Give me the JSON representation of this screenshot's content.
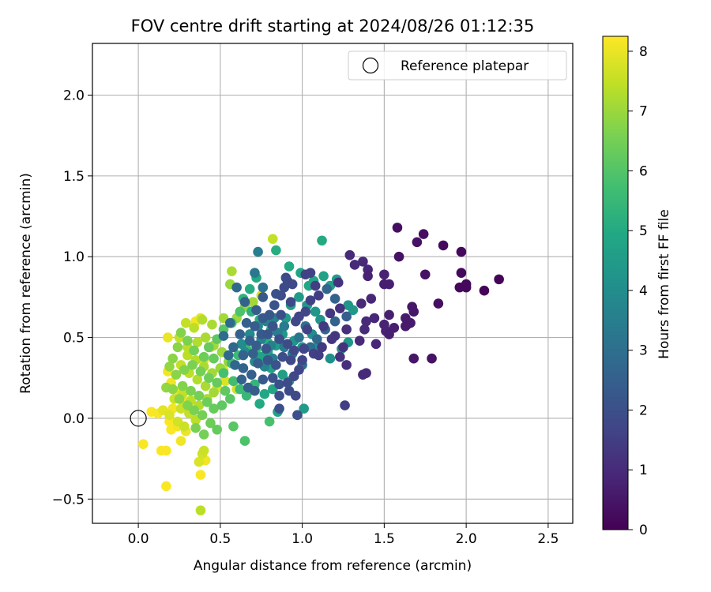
{
  "chart_data": {
    "type": "scatter",
    "title": "FOV centre drift starting at 2024/08/26 01:12:35",
    "xlabel": "Angular distance from reference (arcmin)",
    "ylabel": "Rotation from reference (arcmin)",
    "xlim": [
      -0.28,
      2.65
    ],
    "ylim": [
      -0.65,
      2.32
    ],
    "xticks": [
      "0.0",
      "0.5",
      "1.0",
      "1.5",
      "2.0",
      "2.5"
    ],
    "yticks": [
      "−0.5",
      "0.0",
      "0.5",
      "1.0",
      "1.5",
      "2.0"
    ],
    "grid": true,
    "legend": {
      "placement": "top-right",
      "entries": [
        "Reference platepar"
      ]
    },
    "reference_point": {
      "x": 0.0,
      "y": 0.0
    },
    "colorbar": {
      "label": "Hours from first FF file",
      "colormap": "viridis",
      "range": [
        0,
        8.25
      ],
      "ticks": [
        "0",
        "1",
        "2",
        "3",
        "4",
        "5",
        "6",
        "7",
        "8"
      ]
    },
    "points_x_y_hours": [
      [
        1.58,
        1.18,
        0.3
      ],
      [
        1.74,
        1.14,
        0.3
      ],
      [
        1.7,
        1.09,
        0.4
      ],
      [
        1.86,
        1.07,
        0.2
      ],
      [
        1.97,
        1.03,
        0.2
      ],
      [
        1.59,
        1.0,
        0.4
      ],
      [
        1.29,
        1.01,
        1.0
      ],
      [
        1.37,
        0.97,
        1.0
      ],
      [
        1.4,
        0.92,
        0.9
      ],
      [
        1.32,
        0.95,
        1.0
      ],
      [
        1.4,
        0.88,
        0.8
      ],
      [
        1.5,
        0.89,
        0.8
      ],
      [
        1.5,
        0.83,
        0.7
      ],
      [
        1.53,
        0.83,
        0.7
      ],
      [
        1.75,
        0.89,
        0.4
      ],
      [
        1.97,
        0.9,
        0.2
      ],
      [
        2.0,
        0.83,
        0.2
      ],
      [
        2.2,
        0.86,
        0.1
      ],
      [
        2.11,
        0.79,
        0.1
      ],
      [
        1.96,
        0.81,
        0.2
      ],
      [
        2.0,
        0.81,
        0.2
      ],
      [
        1.67,
        0.69,
        0.5
      ],
      [
        1.68,
        0.66,
        0.5
      ],
      [
        1.83,
        0.71,
        0.3
      ],
      [
        1.63,
        0.62,
        0.6
      ],
      [
        1.66,
        0.59,
        0.6
      ],
      [
        1.53,
        0.64,
        0.7
      ],
      [
        1.5,
        0.58,
        0.8
      ],
      [
        1.64,
        0.58,
        0.6
      ],
      [
        1.56,
        0.56,
        0.7
      ],
      [
        1.63,
        0.57,
        0.6
      ],
      [
        1.53,
        0.52,
        0.7
      ],
      [
        1.51,
        0.54,
        0.8
      ],
      [
        1.39,
        0.6,
        1.0
      ],
      [
        1.38,
        0.55,
        1.0
      ],
      [
        1.45,
        0.46,
        0.9
      ],
      [
        1.35,
        0.48,
        1.0
      ],
      [
        1.37,
        0.27,
        1.0
      ],
      [
        1.39,
        0.28,
        1.0
      ],
      [
        1.68,
        0.37,
        0.5
      ],
      [
        1.79,
        0.37,
        0.4
      ],
      [
        1.26,
        0.08,
        1.5
      ],
      [
        0.97,
        0.02,
        2.0
      ],
      [
        1.44,
        0.62,
        0.9
      ],
      [
        1.42,
        0.74,
        0.9
      ],
      [
        1.36,
        0.71,
        1.0
      ],
      [
        1.22,
        0.84,
        1.2
      ],
      [
        1.1,
        0.76,
        1.5
      ],
      [
        1.23,
        0.68,
        1.2
      ],
      [
        1.17,
        0.65,
        1.3
      ],
      [
        1.13,
        0.57,
        1.4
      ],
      [
        1.27,
        0.55,
        1.1
      ],
      [
        1.2,
        0.51,
        1.3
      ],
      [
        1.25,
        0.44,
        1.2
      ],
      [
        1.27,
        0.33,
        1.1
      ],
      [
        1.23,
        0.38,
        1.2
      ],
      [
        1.18,
        0.49,
        1.3
      ],
      [
        1.12,
        0.44,
        1.4
      ],
      [
        1.03,
        0.55,
        1.6
      ],
      [
        0.98,
        0.63,
        1.7
      ],
      [
        0.93,
        0.72,
        1.8
      ],
      [
        0.9,
        0.87,
        1.9
      ],
      [
        0.94,
        0.83,
        1.8
      ],
      [
        1.05,
        0.9,
        1.6
      ],
      [
        1.02,
        0.89,
        1.6
      ],
      [
        1.08,
        0.82,
        1.5
      ],
      [
        1.05,
        0.73,
        1.6
      ],
      [
        1.02,
        0.66,
        1.7
      ],
      [
        0.96,
        0.6,
        1.8
      ],
      [
        0.87,
        0.64,
        2.0
      ],
      [
        0.82,
        0.57,
        2.1
      ],
      [
        0.79,
        0.52,
        2.2
      ],
      [
        0.86,
        0.49,
        2.0
      ],
      [
        0.91,
        0.46,
        1.9
      ],
      [
        0.95,
        0.42,
        1.8
      ],
      [
        1.01,
        0.43,
        1.7
      ],
      [
        1.07,
        0.4,
        1.6
      ],
      [
        1.1,
        0.39,
        1.5
      ],
      [
        1.0,
        0.36,
        1.7
      ],
      [
        0.93,
        0.36,
        1.8
      ],
      [
        0.88,
        0.38,
        2.0
      ],
      [
        0.84,
        0.33,
        2.1
      ],
      [
        0.79,
        0.36,
        2.2
      ],
      [
        0.73,
        0.34,
        2.4
      ],
      [
        0.7,
        0.4,
        2.5
      ],
      [
        0.64,
        0.39,
        2.6
      ],
      [
        0.58,
        0.44,
        2.7
      ],
      [
        0.62,
        0.52,
        2.6
      ],
      [
        0.66,
        0.59,
        2.5
      ],
      [
        0.71,
        0.57,
        2.4
      ],
      [
        0.75,
        0.52,
        2.3
      ],
      [
        0.68,
        0.48,
        2.5
      ],
      [
        0.56,
        0.59,
        2.8
      ],
      [
        0.52,
        0.51,
        2.9
      ],
      [
        0.55,
        0.39,
        2.8
      ],
      [
        0.59,
        0.33,
        2.7
      ],
      [
        0.64,
        0.31,
        2.6
      ],
      [
        0.69,
        0.27,
        2.5
      ],
      [
        0.76,
        0.24,
        2.3
      ],
      [
        0.82,
        0.25,
        2.1
      ],
      [
        0.86,
        0.21,
        2.0
      ],
      [
        0.91,
        0.22,
        1.9
      ],
      [
        0.95,
        0.26,
        1.8
      ],
      [
        0.98,
        0.3,
        1.7
      ],
      [
        0.6,
        0.81,
        2.8
      ],
      [
        0.65,
        0.72,
        2.6
      ],
      [
        0.72,
        0.67,
        2.4
      ],
      [
        0.76,
        0.75,
        2.3
      ],
      [
        0.83,
        0.7,
        2.1
      ],
      [
        0.87,
        0.76,
        2.0
      ],
      [
        0.89,
        0.81,
        1.9
      ],
      [
        0.91,
        0.85,
        1.9
      ],
      [
        0.84,
        0.77,
        2.1
      ],
      [
        0.8,
        0.64,
        2.2
      ],
      [
        0.76,
        0.62,
        2.3
      ],
      [
        0.72,
        0.45,
        2.4
      ],
      [
        0.78,
        0.43,
        2.2
      ],
      [
        0.63,
        0.24,
        2.6
      ],
      [
        0.67,
        0.19,
        2.5
      ],
      [
        0.71,
        0.17,
        2.4
      ],
      [
        0.86,
        0.14,
        2.0
      ],
      [
        0.92,
        0.17,
        1.9
      ],
      [
        0.96,
        0.14,
        1.8
      ],
      [
        0.86,
        0.06,
        2.0
      ],
      [
        0.76,
        0.81,
        3.1
      ],
      [
        0.71,
        0.9,
        3.3
      ],
      [
        0.73,
        1.03,
        3.5
      ],
      [
        0.98,
        0.5,
        3.2
      ],
      [
        1.02,
        0.57,
        3.0
      ],
      [
        0.89,
        0.57,
        3.4
      ],
      [
        0.85,
        0.53,
        3.5
      ],
      [
        0.89,
        0.44,
        3.4
      ],
      [
        0.94,
        0.4,
        3.3
      ],
      [
        0.81,
        0.45,
        3.6
      ],
      [
        0.75,
        0.49,
        3.7
      ],
      [
        0.82,
        0.37,
        3.5
      ],
      [
        0.77,
        0.32,
        3.7
      ],
      [
        0.71,
        0.35,
        3.8
      ],
      [
        0.65,
        0.41,
        4.0
      ],
      [
        0.63,
        0.46,
        4.0
      ],
      [
        0.68,
        0.52,
        3.9
      ],
      [
        0.73,
        0.57,
        3.8
      ],
      [
        0.78,
        0.6,
        3.7
      ],
      [
        0.83,
        0.62,
        3.6
      ],
      [
        1.0,
        0.33,
        3.0
      ],
      [
        1.05,
        0.44,
        2.9
      ],
      [
        1.09,
        0.49,
        2.8
      ],
      [
        1.14,
        0.55,
        2.7
      ],
      [
        1.2,
        0.6,
        2.6
      ],
      [
        1.27,
        0.63,
        2.5
      ],
      [
        1.2,
        0.74,
        2.6
      ],
      [
        1.15,
        0.8,
        2.7
      ],
      [
        1.28,
        0.7,
        4.3
      ],
      [
        1.31,
        0.67,
        4.4
      ],
      [
        1.28,
        0.47,
        4.3
      ],
      [
        1.24,
        0.43,
        4.2
      ],
      [
        1.17,
        0.37,
        4.1
      ],
      [
        1.1,
        0.45,
        4.1
      ],
      [
        1.06,
        0.52,
        4.0
      ],
      [
        1.11,
        0.61,
        4.2
      ],
      [
        1.08,
        0.66,
        4.3
      ],
      [
        1.03,
        0.7,
        4.4
      ],
      [
        0.98,
        0.75,
        4.5
      ],
      [
        0.93,
        0.7,
        4.6
      ],
      [
        0.9,
        0.62,
        4.5
      ],
      [
        0.88,
        0.52,
        4.4
      ],
      [
        0.95,
        0.48,
        4.3
      ],
      [
        1.0,
        0.44,
        4.2
      ],
      [
        0.84,
        0.45,
        4.6
      ],
      [
        0.79,
        0.41,
        4.7
      ],
      [
        0.75,
        0.38,
        4.8
      ],
      [
        0.81,
        0.31,
        4.7
      ],
      [
        0.88,
        0.27,
        4.6
      ],
      [
        0.92,
        0.23,
        4.5
      ],
      [
        0.82,
        0.18,
        4.8
      ],
      [
        0.77,
        0.15,
        4.9
      ],
      [
        0.74,
        0.09,
        5.0
      ],
      [
        0.85,
        0.04,
        4.7
      ],
      [
        1.01,
        0.06,
        4.5
      ],
      [
        0.99,
        0.9,
        4.8
      ],
      [
        1.12,
        1.1,
        5.0
      ],
      [
        1.04,
        0.82,
        4.9
      ],
      [
        1.13,
        0.88,
        4.7
      ],
      [
        1.17,
        0.82,
        4.6
      ],
      [
        1.21,
        0.86,
        4.6
      ],
      [
        1.07,
        0.85,
        4.8
      ],
      [
        0.92,
        0.94,
        5.0
      ],
      [
        0.84,
        1.04,
        5.1
      ],
      [
        0.72,
        0.87,
        5.0
      ],
      [
        0.68,
        0.8,
        5.1
      ],
      [
        0.64,
        0.74,
        5.3
      ],
      [
        0.69,
        0.66,
        5.2
      ],
      [
        0.74,
        0.61,
        5.1
      ],
      [
        0.81,
        0.55,
        5.0
      ],
      [
        0.86,
        0.48,
        4.9
      ],
      [
        0.79,
        0.47,
        5.3
      ],
      [
        0.72,
        0.43,
        5.4
      ],
      [
        0.66,
        0.43,
        5.5
      ],
      [
        0.61,
        0.39,
        5.6
      ],
      [
        0.57,
        0.34,
        5.7
      ],
      [
        0.52,
        0.28,
        5.8
      ],
      [
        0.58,
        0.23,
        5.7
      ],
      [
        0.62,
        0.18,
        5.6
      ],
      [
        0.66,
        0.14,
        5.5
      ],
      [
        0.71,
        0.21,
        5.4
      ],
      [
        0.58,
        -0.05,
        6.1
      ],
      [
        0.65,
        -0.14,
        5.9
      ],
      [
        0.8,
        -0.02,
        5.8
      ],
      [
        0.62,
        0.66,
        5.9
      ],
      [
        0.57,
        0.59,
        6.0
      ],
      [
        0.52,
        0.55,
        6.1
      ],
      [
        0.48,
        0.49,
        6.2
      ],
      [
        0.43,
        0.44,
        6.3
      ],
      [
        0.46,
        0.37,
        6.3
      ],
      [
        0.4,
        0.38,
        6.4
      ],
      [
        0.34,
        0.42,
        6.5
      ],
      [
        0.3,
        0.48,
        6.6
      ],
      [
        0.26,
        0.53,
        6.7
      ],
      [
        0.24,
        0.44,
        6.8
      ],
      [
        0.21,
        0.37,
        6.8
      ],
      [
        0.19,
        0.32,
        6.9
      ],
      [
        0.23,
        0.27,
        6.8
      ],
      [
        0.28,
        0.3,
        6.7
      ],
      [
        0.33,
        0.33,
        6.6
      ],
      [
        0.38,
        0.29,
        6.5
      ],
      [
        0.43,
        0.25,
        6.4
      ],
      [
        0.48,
        0.22,
        6.3
      ],
      [
        0.53,
        0.17,
        6.2
      ],
      [
        0.56,
        0.12,
        6.1
      ],
      [
        0.51,
        0.08,
        6.2
      ],
      [
        0.46,
        0.06,
        6.3
      ],
      [
        0.42,
        0.1,
        6.4
      ],
      [
        0.37,
        0.14,
        6.5
      ],
      [
        0.32,
        0.17,
        6.6
      ],
      [
        0.27,
        0.2,
        6.7
      ],
      [
        0.21,
        0.18,
        6.8
      ],
      [
        0.17,
        0.19,
        6.9
      ],
      [
        0.25,
        0.12,
        6.8
      ],
      [
        0.3,
        0.08,
        6.7
      ],
      [
        0.34,
        0.05,
        6.6
      ],
      [
        0.39,
        0.02,
        6.5
      ],
      [
        0.44,
        -0.03,
        6.4
      ],
      [
        0.48,
        -0.07,
        6.3
      ],
      [
        0.4,
        -0.1,
        6.5
      ],
      [
        0.35,
        -0.06,
        6.6
      ],
      [
        0.38,
        -0.57,
        7.4
      ],
      [
        0.57,
        0.91,
        7.2
      ],
      [
        0.65,
        0.69,
        6.9
      ],
      [
        0.6,
        0.62,
        7.0
      ],
      [
        0.52,
        0.62,
        7.1
      ],
      [
        0.45,
        0.58,
        7.2
      ],
      [
        0.39,
        0.61,
        7.3
      ],
      [
        0.34,
        0.56,
        7.4
      ],
      [
        0.29,
        0.59,
        7.5
      ],
      [
        0.25,
        0.5,
        7.5
      ],
      [
        0.3,
        0.44,
        7.4
      ],
      [
        0.36,
        0.47,
        7.3
      ],
      [
        0.41,
        0.5,
        7.2
      ],
      [
        0.46,
        0.45,
        7.1
      ],
      [
        0.51,
        0.41,
        7.0
      ],
      [
        0.55,
        0.35,
        6.9
      ],
      [
        0.5,
        0.31,
        7.0
      ],
      [
        0.45,
        0.28,
        7.1
      ],
      [
        0.4,
        0.32,
        7.2
      ],
      [
        0.35,
        0.36,
        7.3
      ],
      [
        0.3,
        0.39,
        7.4
      ],
      [
        0.26,
        0.33,
        7.5
      ],
      [
        0.31,
        0.28,
        7.4
      ],
      [
        0.36,
        0.24,
        7.3
      ],
      [
        0.41,
        0.2,
        7.2
      ],
      [
        0.46,
        0.16,
        7.1
      ],
      [
        0.42,
        0.12,
        7.2
      ],
      [
        0.37,
        0.08,
        7.3
      ],
      [
        0.32,
        0.11,
        7.4
      ],
      [
        0.27,
        0.15,
        7.5
      ],
      [
        0.22,
        0.12,
        7.6
      ],
      [
        0.26,
        0.06,
        7.6
      ],
      [
        0.31,
        0.03,
        7.5
      ],
      [
        0.35,
        -0.01,
        7.4
      ],
      [
        0.28,
        -0.05,
        7.6
      ],
      [
        0.24,
        -0.02,
        7.7
      ],
      [
        0.19,
        0.02,
        7.8
      ],
      [
        0.15,
        0.05,
        7.9
      ],
      [
        0.4,
        -0.2,
        7.6
      ],
      [
        0.37,
        -0.27,
        7.8
      ],
      [
        0.39,
        -0.22,
        7.7
      ],
      [
        0.82,
        1.11,
        7.5
      ],
      [
        0.75,
        0.76,
        7.7
      ],
      [
        0.56,
        0.83,
        7.0
      ],
      [
        0.7,
        0.72,
        7.1
      ],
      [
        0.38,
        0.62,
        7.9
      ],
      [
        0.44,
        0.44,
        7.8
      ],
      [
        0.4,
        0.36,
        7.9
      ],
      [
        0.52,
        0.3,
        7.8
      ],
      [
        0.48,
        0.19,
        7.9
      ],
      [
        0.53,
        0.23,
        7.8
      ],
      [
        0.6,
        0.18,
        7.7
      ],
      [
        0.18,
        0.5,
        8.0
      ],
      [
        0.18,
        0.29,
        8.1
      ],
      [
        0.2,
        0.22,
        8.1
      ],
      [
        0.25,
        0.17,
        8.0
      ],
      [
        0.28,
        0.1,
        8.0
      ],
      [
        0.21,
        0.06,
        8.1
      ],
      [
        0.19,
        -0.02,
        8.2
      ],
      [
        0.24,
        -0.05,
        8.1
      ],
      [
        0.29,
        -0.08,
        8.0
      ],
      [
        0.26,
        -0.14,
        8.1
      ],
      [
        0.12,
        0.03,
        8.2
      ],
      [
        0.08,
        0.04,
        8.2
      ],
      [
        0.03,
        -0.16,
        8.2
      ],
      [
        0.14,
        -0.2,
        8.2
      ],
      [
        0.17,
        -0.2,
        8.2
      ],
      [
        0.2,
        -0.07,
        8.2
      ],
      [
        0.17,
        -0.42,
        8.2
      ],
      [
        0.41,
        -0.26,
        8.1
      ],
      [
        0.38,
        -0.35,
        8.2
      ],
      [
        0.73,
        0.4,
        8.2
      ],
      [
        0.35,
        0.6,
        8.1
      ]
    ]
  }
}
